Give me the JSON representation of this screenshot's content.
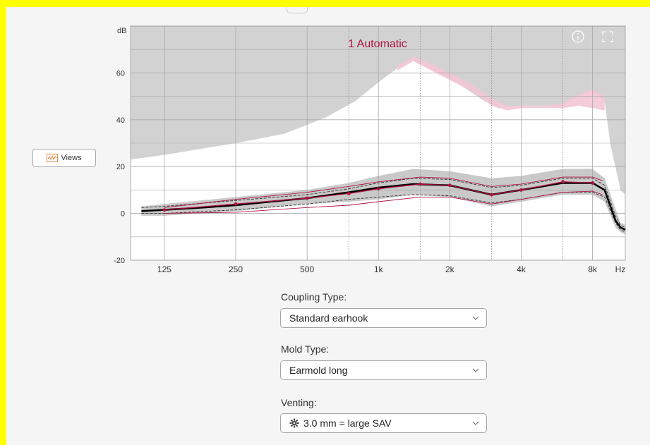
{
  "views_button": {
    "label": "Views",
    "icon": "chart-wave-icon"
  },
  "chart_data": {
    "type": "line",
    "title": "1 Automatic",
    "ylabel": "dB",
    "xlabel": "Hz",
    "xscale": "log",
    "xlim": [
      90,
      11000
    ],
    "ylim": [
      -20,
      80
    ],
    "yticks": [
      -20,
      0,
      20,
      40,
      60
    ],
    "xticks": [
      {
        "value": 125,
        "label": "125"
      },
      {
        "value": 250,
        "label": "250"
      },
      {
        "value": 500,
        "label": "500"
      },
      {
        "value": 1000,
        "label": "1k"
      },
      {
        "value": 2000,
        "label": "2k"
      },
      {
        "value": 4000,
        "label": "4k"
      },
      {
        "value": 8000,
        "label": "8k"
      }
    ],
    "dotted_gridlines_x": [
      750,
      1500,
      3000,
      6000
    ],
    "grid": true,
    "colors": {
      "grey_area": "#d2d2d2",
      "pink_band": "#f3c5d4",
      "target": "#b0103f",
      "response": "#000000",
      "title": "#b0103f"
    },
    "upper_white_boundary": {
      "x": [
        90,
        125,
        250,
        400,
        600,
        800,
        1000,
        1200,
        1400,
        1800,
        2200,
        2800,
        3200,
        4000,
        5000,
        6000,
        7000,
        8000,
        9000,
        9500,
        10500,
        11000
      ],
      "y": [
        23,
        25,
        30,
        34,
        41,
        48,
        56,
        62,
        66,
        60,
        55,
        48,
        45,
        46,
        46,
        46,
        50,
        52,
        48,
        30,
        10,
        8
      ]
    },
    "pink_band_top": {
      "x": [
        1200,
        1400,
        1600,
        2000,
        2500,
        3000,
        3500,
        4000,
        5000,
        6000,
        7000,
        8000,
        9000
      ],
      "y": [
        63,
        67,
        65,
        60,
        55,
        49,
        46,
        46,
        46,
        47,
        51,
        53,
        50
      ]
    },
    "pink_band_bottom": {
      "x": [
        1200,
        1400,
        1600,
        2000,
        2500,
        3000,
        3500,
        4000,
        5000,
        6000,
        7000,
        8000,
        9000
      ],
      "y": [
        61,
        65,
        62,
        57,
        52,
        46,
        44,
        45,
        45,
        45,
        46,
        45,
        44
      ]
    },
    "shade_top": {
      "x": [
        100,
        125,
        250,
        500,
        750,
        1000,
        1400,
        2000,
        3000,
        4000,
        6000,
        8000,
        9000,
        10000,
        10500,
        11000
      ],
      "y": [
        3,
        4,
        7,
        10,
        13,
        16,
        19,
        18,
        15,
        16,
        19,
        19,
        15,
        2,
        -4,
        -5
      ]
    },
    "shade_bottom": {
      "x": [
        100,
        125,
        250,
        500,
        750,
        1000,
        1400,
        2000,
        3000,
        4000,
        6000,
        8000,
        9000,
        10000,
        10500,
        11000
      ],
      "y": [
        -1,
        -1,
        1,
        4,
        5,
        6,
        8,
        7,
        3,
        5,
        8,
        8,
        5,
        -6,
        -8,
        -9
      ]
    },
    "series": [
      {
        "role": "response-thick",
        "x": [
          100,
          125,
          180,
          250,
          350,
          500,
          750,
          1000,
          1400,
          2000,
          3000,
          4000,
          6000,
          8000,
          9000,
          10000,
          10500,
          11000
        ],
        "y": [
          1,
          1.5,
          2.5,
          3.5,
          5,
          6.5,
          9,
          11,
          12.5,
          12,
          8,
          10,
          13,
          13,
          10,
          -3,
          -6,
          -7
        ]
      },
      {
        "role": "response-dashed-upper",
        "x": [
          100,
          125,
          250,
          500,
          750,
          1000,
          1400,
          2000,
          3000,
          4000,
          6000,
          8000,
          9000,
          10000,
          10500,
          11000
        ],
        "y": [
          2.5,
          3,
          5.5,
          8,
          10.5,
          13,
          15,
          14.5,
          11,
          12,
          15,
          15,
          12,
          -1,
          -5,
          -6
        ]
      },
      {
        "role": "response-dashed-lower",
        "x": [
          100,
          125,
          250,
          500,
          750,
          1000,
          1400,
          2000,
          3000,
          4000,
          6000,
          8000,
          9000,
          10000,
          10500,
          11000
        ],
        "y": [
          0,
          0,
          1.5,
          4,
          6,
          7,
          8,
          7.5,
          4.5,
          6,
          9,
          9,
          7,
          -4,
          -7,
          -8
        ]
      },
      {
        "role": "target-main",
        "x": [
          125,
          250,
          500,
          750,
          1000,
          1500,
          2000,
          3000,
          4000,
          6000,
          8000
        ],
        "y": [
          1.5,
          4,
          6.5,
          8.5,
          10.5,
          12.5,
          12,
          8,
          10,
          13.5,
          13
        ],
        "markers": true
      },
      {
        "role": "target-upper",
        "x": [
          125,
          250,
          500,
          750,
          1000,
          1500,
          2000,
          3000,
          4000,
          6000,
          8000,
          8800
        ],
        "y": [
          2.5,
          6,
          9,
          11.5,
          13.5,
          15.5,
          15,
          11.5,
          12.5,
          15.5,
          15.5,
          14
        ]
      },
      {
        "role": "target-lower",
        "x": [
          125,
          250,
          500,
          750,
          1000,
          1500,
          2000,
          3000,
          4000,
          6000,
          8000,
          8800
        ],
        "y": [
          0,
          0.5,
          2.5,
          3.5,
          5,
          7,
          7,
          4,
          6,
          9,
          9.5,
          8
        ]
      }
    ]
  },
  "coupling_type": {
    "label": "Coupling Type:",
    "value": "Standard earhook"
  },
  "mold_type": {
    "label": "Mold Type:",
    "value": "Earmold long"
  },
  "venting": {
    "label": "Venting:",
    "value": "3.0 mm = large SAV",
    "icon": "vent-gear-icon"
  }
}
